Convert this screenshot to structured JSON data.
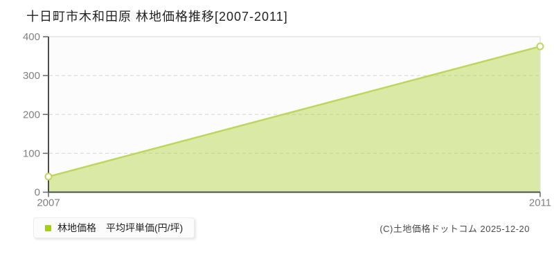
{
  "header": {
    "title": "十日町市木和田原 林地価格推移[2007-2011]"
  },
  "legend": {
    "label": "林地価格　平均坪単価(円/坪)",
    "marker_color": "#a3d014"
  },
  "footer": {
    "copyright": "(C)土地価格ドットコム 2025-12-20"
  },
  "chart_data": {
    "type": "area",
    "title": "十日町市木和田原 林地価格推移[2007-2011]",
    "series": [
      {
        "name": "林地価格 平均坪単価(円/坪)",
        "x": [
          2007,
          2011
        ],
        "values": [
          40,
          375
        ]
      }
    ],
    "xlabel": "",
    "ylabel": "",
    "xlim": [
      2007,
      2011
    ],
    "ylim": [
      0,
      400
    ],
    "xticks": [
      2007,
      2011
    ],
    "yticks": [
      0,
      100,
      200,
      300,
      400
    ],
    "grid": "horizontal-dashed",
    "legend_position": "bottom-left",
    "colors": {
      "plot_bg": "#fcfcfc",
      "border": "#e4e4e4",
      "grid": "#dcdcdc",
      "axis": "#4d4d4d",
      "tick": "#666666",
      "tick_label": "#808080",
      "line": "#bdd75c",
      "fill": "rgba(173,208,48,0.42)",
      "marker_fill": "#ffffff",
      "marker_stroke": "#bdd75c"
    }
  }
}
